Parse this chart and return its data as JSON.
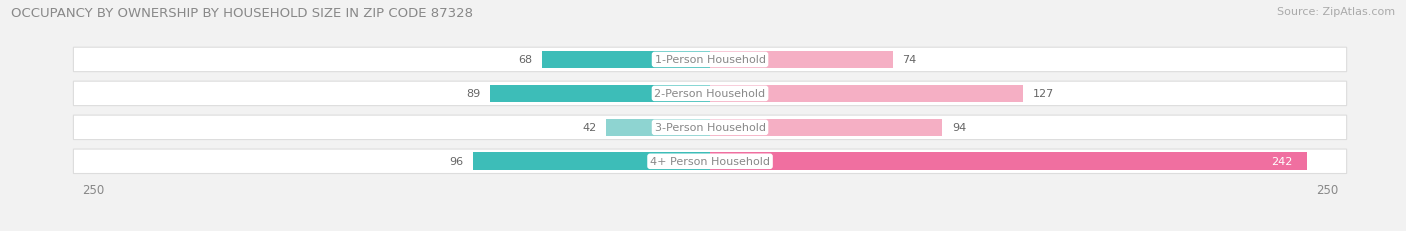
{
  "title": "OCCUPANCY BY OWNERSHIP BY HOUSEHOLD SIZE IN ZIP CODE 87328",
  "source": "Source: ZipAtlas.com",
  "categories": [
    "1-Person Household",
    "2-Person Household",
    "3-Person Household",
    "4+ Person Household"
  ],
  "owner_values": [
    68,
    89,
    42,
    96
  ],
  "renter_values": [
    74,
    127,
    94,
    242
  ],
  "owner_color_rows": [
    "#3dbdb8",
    "#3dbdb8",
    "#8ed4d1",
    "#3dbdb8"
  ],
  "renter_color_rows": [
    "#f5afc4",
    "#f5afc4",
    "#f5afc4",
    "#f06fa0"
  ],
  "axis_max": 250,
  "legend_owner_color": "#3dbdb8",
  "legend_renter_color": "#f5afc4",
  "bg_color": "#f2f2f2",
  "row_bg_color": "#ffffff",
  "row_border_color": "#dddddd",
  "value_color_normal": "#666666",
  "value_color_white": "#ffffff",
  "label_bg_color": "#ffffff",
  "label_text_color": "#888888",
  "title_color": "#888888",
  "source_color": "#aaaaaa",
  "axis_tick_color": "#888888",
  "title_fontsize": 9.5,
  "source_fontsize": 8,
  "bar_fontsize": 8,
  "label_fontsize": 8,
  "axis_label_fontsize": 8.5
}
